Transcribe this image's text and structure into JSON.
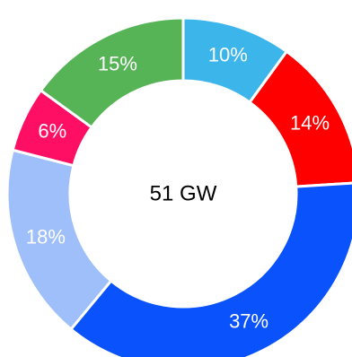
{
  "chart_data": {
    "type": "pie",
    "title": "",
    "center_label": "51 GW",
    "slices": [
      {
        "label": "10%",
        "value": 10,
        "color": "#3cb6ea"
      },
      {
        "label": "14%",
        "value": 14,
        "color": "#fe0000"
      },
      {
        "label": "37%",
        "value": 37,
        "color": "#0a52fb"
      },
      {
        "label": "18%",
        "value": 18,
        "color": "#9fbffa"
      },
      {
        "label": "6%",
        "value": 6,
        "color": "#fe0f63"
      },
      {
        "label": "15%",
        "value": 15,
        "color": "#56b457"
      }
    ]
  }
}
